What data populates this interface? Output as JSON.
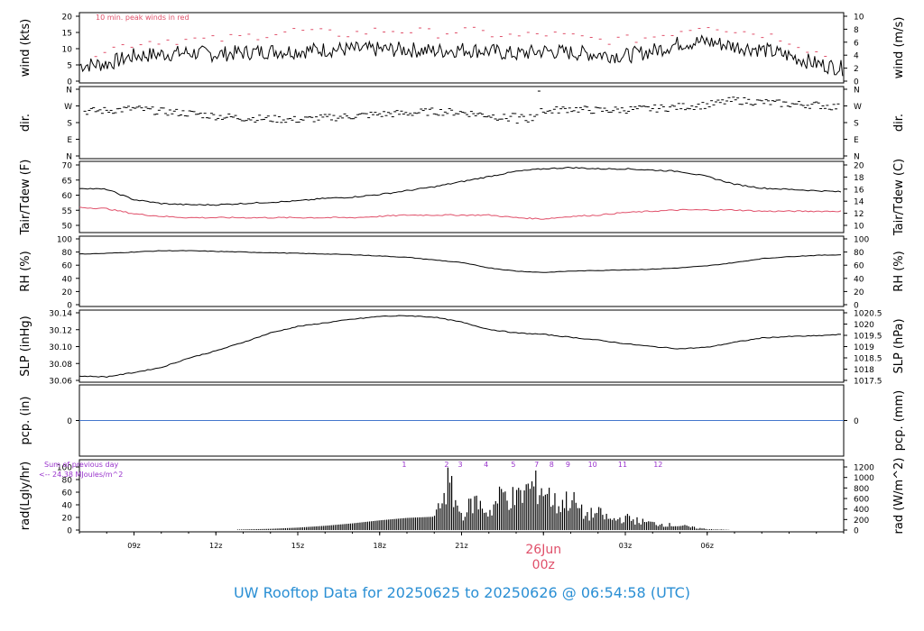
{
  "footer": {
    "title": "UW Rooftop Data for 20250625  to  20250626 @ 06:54:58  (UTC)"
  },
  "colors": {
    "series": "#000000",
    "peak": "#e0506a",
    "dew": "#e0506a",
    "pcp_line": "#4477cc",
    "rad_note": "#9933cc",
    "title": "#2a8fd4",
    "date_label": "#e0506a"
  },
  "chart_data": [
    {
      "panel": "wind",
      "type": "line",
      "ylabel_left": "wind (kts)",
      "ylabel_right": "wind (m/s)",
      "yticks_left": [
        "0",
        "5",
        "10",
        "15",
        "20"
      ],
      "yticks_right": [
        "0",
        "2",
        "4",
        "6",
        "8",
        "10"
      ],
      "ylim": [
        0,
        20.5
      ],
      "annotation": "10 min. peak winds in red",
      "series": [
        {
          "role": "speed",
          "x_hours": [
            0,
            1,
            2,
            3,
            4,
            5,
            6,
            7,
            8,
            9,
            10,
            11,
            12,
            13,
            14,
            15,
            16,
            17,
            18,
            19,
            20,
            21,
            22,
            23,
            24,
            25,
            26,
            27,
            28
          ],
          "values": [
            5,
            5.5,
            8,
            8.5,
            9,
            8.5,
            9,
            9.5,
            9.5,
            10,
            10,
            10,
            10,
            9.5,
            10,
            9.5,
            8.5,
            9.5,
            9,
            8.5,
            8,
            9.5,
            12,
            12.5,
            11,
            10,
            8,
            5.5,
            4
          ]
        },
        {
          "role": "peak",
          "x_hours": [
            0,
            1,
            2,
            3,
            4,
            5,
            6,
            7,
            8,
            9,
            10,
            11,
            12,
            13,
            14,
            15,
            16,
            17,
            18,
            19,
            20,
            21,
            22,
            23,
            24,
            25,
            26,
            27,
            28
          ],
          "values": [
            8,
            10,
            12,
            13,
            13,
            13,
            14,
            15,
            16,
            15,
            15,
            16,
            16,
            15,
            16,
            15,
            14,
            15,
            14,
            13,
            13,
            14,
            16,
            18,
            16,
            15,
            13,
            9,
            7
          ]
        }
      ]
    },
    {
      "panel": "dir",
      "type": "scatter",
      "ylabel_left": "dir.",
      "ylabel_right": "dir.",
      "yticks_left": [
        "N",
        "E",
        "S",
        "W",
        "N"
      ],
      "yticks_right": [
        "N",
        "E",
        "S",
        "W",
        "N"
      ],
      "ylim": [
        0,
        360
      ],
      "x_hours": [
        0,
        1,
        2,
        3,
        4,
        5,
        6,
        7,
        8,
        9,
        10,
        11,
        12,
        13,
        14,
        15,
        16,
        17,
        18,
        19,
        20,
        21,
        22,
        23,
        24,
        25,
        26,
        27,
        28
      ],
      "values": [
        240,
        245,
        255,
        240,
        230,
        215,
        205,
        200,
        195,
        205,
        215,
        225,
        230,
        240,
        235,
        220,
        195,
        240,
        255,
        245,
        250,
        255,
        265,
        275,
        300,
        290,
        280,
        275,
        260
      ]
    },
    {
      "panel": "temp",
      "type": "line",
      "ylabel_left": "Tair/Tdew (F)",
      "ylabel_right": "Tair/Tdew (C)",
      "yticks_left": [
        "50",
        "55",
        "60",
        "65",
        "70"
      ],
      "yticks_right": [
        "10",
        "12",
        "14",
        "16",
        "18",
        "20"
      ],
      "ylim": [
        47,
        70.5
      ],
      "series": [
        {
          "role": "air",
          "x_hours": [
            0,
            1,
            2,
            3,
            4,
            5,
            6,
            7,
            8,
            9,
            10,
            11,
            12,
            13,
            14,
            15,
            16,
            17,
            18,
            19,
            20,
            21,
            22,
            23,
            24,
            25,
            26,
            27,
            28
          ],
          "values": [
            61.5,
            61,
            57,
            55.5,
            55,
            55,
            55.5,
            56,
            56.5,
            57.5,
            58,
            59,
            60.5,
            62,
            64,
            66,
            68,
            69,
            69.5,
            69,
            69,
            68.5,
            68,
            66,
            63,
            61.5,
            61,
            60.5,
            60
          ]
        },
        {
          "role": "dew",
          "x_hours": [
            0,
            1,
            2,
            3,
            4,
            5,
            6,
            7,
            8,
            9,
            10,
            11,
            12,
            13,
            14,
            15,
            16,
            17,
            18,
            19,
            20,
            21,
            22,
            23,
            24,
            25,
            26,
            27,
            28
          ],
          "values": [
            54,
            53.5,
            51.5,
            50.5,
            50,
            50,
            50,
            50,
            50,
            50,
            50,
            50.5,
            51,
            51,
            51,
            51,
            50,
            49.5,
            50.5,
            51,
            52,
            52.5,
            53,
            53,
            53,
            52.5,
            52.5,
            52.5,
            52.5
          ]
        }
      ]
    },
    {
      "panel": "rh",
      "type": "line",
      "ylabel_left": "RH (%)",
      "ylabel_right": "RH (%)",
      "yticks_left": [
        "0",
        "20",
        "40",
        "60",
        "80",
        "100"
      ],
      "yticks_right": [
        "0",
        "20",
        "40",
        "60",
        "80",
        "100"
      ],
      "ylim": [
        0,
        100
      ],
      "x_hours": [
        0,
        1,
        2,
        3,
        4,
        5,
        6,
        7,
        8,
        9,
        10,
        11,
        12,
        13,
        14,
        15,
        16,
        17,
        18,
        19,
        20,
        21,
        22,
        23,
        24,
        25,
        26,
        27,
        28
      ],
      "values": [
        77,
        78,
        80,
        82,
        82,
        81,
        80,
        79,
        78,
        77,
        76,
        74,
        72,
        68,
        64,
        56,
        51,
        49,
        51,
        52,
        53,
        54,
        56,
        59,
        64,
        70,
        73,
        75,
        76
      ]
    },
    {
      "panel": "slp",
      "type": "line",
      "ylabel_left": "SLP (inHg)",
      "ylabel_right": "SLP (hPa)",
      "yticks_left": [
        "30.06",
        "30.08",
        "30.10",
        "30.12",
        "30.14"
      ],
      "yticks_right": [
        "1017.5",
        "1018",
        "1018.5",
        "1019",
        "1019.5",
        "1020",
        "1020.5"
      ],
      "ylim": [
        30.047,
        30.141
      ],
      "x_hours": [
        0,
        1,
        2,
        3,
        4,
        5,
        6,
        7,
        8,
        9,
        10,
        11,
        12,
        13,
        14,
        15,
        16,
        17,
        18,
        19,
        20,
        21,
        22,
        23,
        24,
        25,
        26,
        27,
        28
      ],
      "values": [
        30.053,
        30.052,
        30.058,
        30.065,
        30.078,
        30.088,
        30.1,
        30.113,
        30.122,
        30.127,
        30.132,
        30.136,
        30.137,
        30.135,
        30.128,
        30.118,
        30.113,
        30.111,
        30.107,
        30.103,
        30.098,
        30.094,
        30.091,
        30.093,
        30.1,
        30.106,
        30.108,
        30.109,
        30.111
      ]
    },
    {
      "panel": "pcp",
      "type": "line",
      "ylabel_left": "pcp. (in)",
      "ylabel_right": "pcp. (mm)",
      "yticks_left": [
        "0"
      ],
      "yticks_right": [
        "0"
      ],
      "ylim": [
        -0.1,
        0.1
      ],
      "x_hours": [
        0,
        28
      ],
      "values": [
        0,
        0
      ]
    },
    {
      "panel": "rad",
      "type": "bar",
      "ylabel_left": "rad(Lgly/hr)",
      "ylabel_right": "rad (W/m^2)",
      "yticks_left": [
        "0",
        "20",
        "40",
        "60",
        "80",
        "100"
      ],
      "yticks_right": [
        "0",
        "200",
        "400",
        "600",
        "800",
        "1000",
        "1200"
      ],
      "ylim": [
        0,
        104
      ],
      "note_lines": [
        "Sum of previous day",
        "<-- 24.38 MJoules/m^2"
      ],
      "hour_marks": [
        {
          "label": "1",
          "x_hours": 11.9
        },
        {
          "label": "2",
          "x_hours": 13.45
        },
        {
          "label": "3",
          "x_hours": 13.95
        },
        {
          "label": "4",
          "x_hours": 14.9
        },
        {
          "label": "5",
          "x_hours": 15.9
        },
        {
          "label": "7",
          "x_hours": 16.75
        },
        {
          "label": "8",
          "x_hours": 17.3
        },
        {
          "label": "9",
          "x_hours": 17.9
        },
        {
          "label": "10",
          "x_hours": 18.8
        },
        {
          "label": "11",
          "x_hours": 19.9
        },
        {
          "label": "12",
          "x_hours": 21.2
        }
      ],
      "x_hours": [
        5,
        6,
        7,
        8,
        9,
        10,
        11,
        12,
        13,
        13.5,
        14,
        14.5,
        15,
        15.5,
        16,
        16.5,
        17,
        17.5,
        18,
        18.5,
        19,
        19.5,
        20,
        20.5,
        21,
        21.5,
        22,
        22.5,
        23,
        24
      ],
      "values": [
        0,
        1,
        2,
        4,
        7,
        11,
        16,
        20,
        22,
        96,
        30,
        60,
        35,
        75,
        62,
        88,
        85,
        50,
        65,
        30,
        35,
        20,
        25,
        18,
        14,
        11,
        9,
        5,
        2,
        0
      ]
    }
  ],
  "xaxis": {
    "start": "20250625 06:54:58 UTC",
    "tick_labels": [
      "09z",
      "12z",
      "15z",
      "18z",
      "21z",
      "03z",
      "06z"
    ],
    "tick_hours": [
      2,
      5,
      8,
      11,
      14,
      20,
      23
    ],
    "date_label": "26Jun",
    "date_sublabel": "00z",
    "date_hours": 17
  }
}
